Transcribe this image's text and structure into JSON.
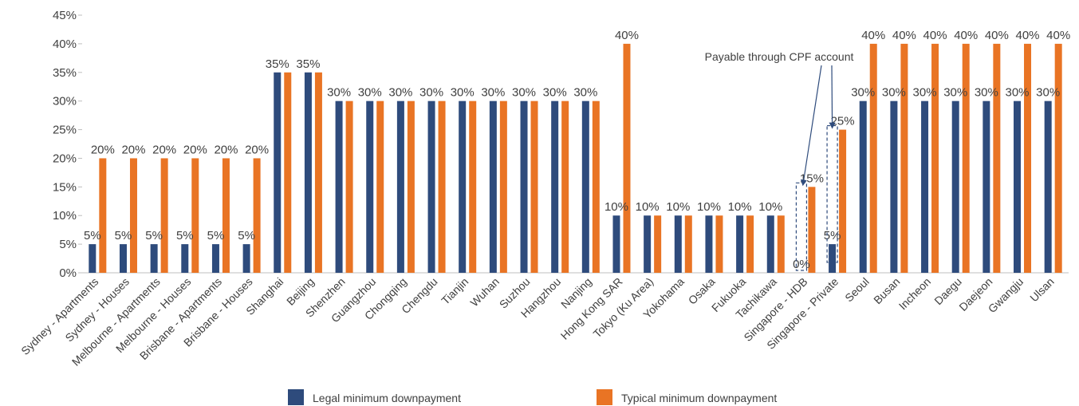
{
  "chart_data": {
    "type": "bar",
    "categories": [
      "Sydney - Apartments",
      "Sydney - Houses",
      "Melbourne - Apartments",
      "Melbourne - Houses",
      "Brisbane - Apartments",
      "Brisbane - Houses",
      "Shanghai",
      "Beijing",
      "Shenzhen",
      "Guangzhou",
      "Chongqing",
      "Chengdu",
      "Tianjin",
      "Wuhan",
      "Suzhou",
      "Hangzhou",
      "Nanjing",
      "Hong Kong SAR",
      "Tokyo (Ku Area)",
      "Yokohama",
      "Osaka",
      "Fukuoka",
      "Tachikawa",
      "Singapore - HDB",
      "Singapore - Private",
      "Seoul",
      "Busan",
      "Incheon",
      "Daegu",
      "Daejeon",
      "Gwangju",
      "Ulsan"
    ],
    "series": [
      {
        "name": "Legal minimum downpayment",
        "color": "#2e4b7c",
        "values": [
          5,
          5,
          5,
          5,
          5,
          5,
          35,
          35,
          30,
          30,
          30,
          30,
          30,
          30,
          30,
          30,
          30,
          10,
          10,
          10,
          10,
          10,
          10,
          0,
          5,
          30,
          30,
          30,
          30,
          30,
          30,
          30
        ]
      },
      {
        "name": "Typical minimum downpayment",
        "color": "#e97424",
        "values": [
          20,
          20,
          20,
          20,
          20,
          20,
          35,
          35,
          30,
          30,
          30,
          30,
          30,
          30,
          30,
          30,
          30,
          40,
          10,
          10,
          10,
          10,
          10,
          15,
          25,
          40,
          40,
          40,
          40,
          40,
          40,
          40
        ]
      }
    ],
    "data_labels": {
      "legal": [
        "5%",
        "5%",
        "5%",
        "5%",
        "5%",
        "5%",
        "35%",
        "35%",
        "30%",
        "30%",
        "30%",
        "30%",
        "30%",
        "30%",
        "30%",
        "30%",
        "30%",
        "10%",
        "10%",
        "10%",
        "10%",
        "10%",
        "10%",
        "0%",
        "5%",
        "30%",
        "30%",
        "30%",
        "30%",
        "30%",
        "30%",
        "30%"
      ],
      "typical": [
        "20%",
        "20%",
        "20%",
        "20%",
        "20%",
        "20%",
        "",
        "",
        "",
        "",
        "",
        "",
        "",
        "",
        "",
        "",
        "",
        "40%",
        "",
        "",
        "",
        "",
        "",
        "15%",
        "25%",
        "40%",
        "40%",
        "40%",
        "40%",
        "40%",
        "40%",
        "40%"
      ]
    },
    "ylim": [
      0,
      45
    ],
    "yticks": [
      0,
      5,
      10,
      15,
      20,
      25,
      30,
      35,
      40,
      45
    ],
    "ytick_labels": [
      "0%",
      "5%",
      "10%",
      "15%",
      "20%",
      "25%",
      "30%",
      "35%",
      "40%",
      "45%"
    ],
    "annotation": {
      "text": "Payable through CPF account",
      "targets": [
        "Singapore - HDB",
        "Singapore - Private"
      ]
    },
    "legend": {
      "placement": "bottom"
    },
    "grid": false,
    "title": "",
    "xlabel": "",
    "ylabel": ""
  }
}
